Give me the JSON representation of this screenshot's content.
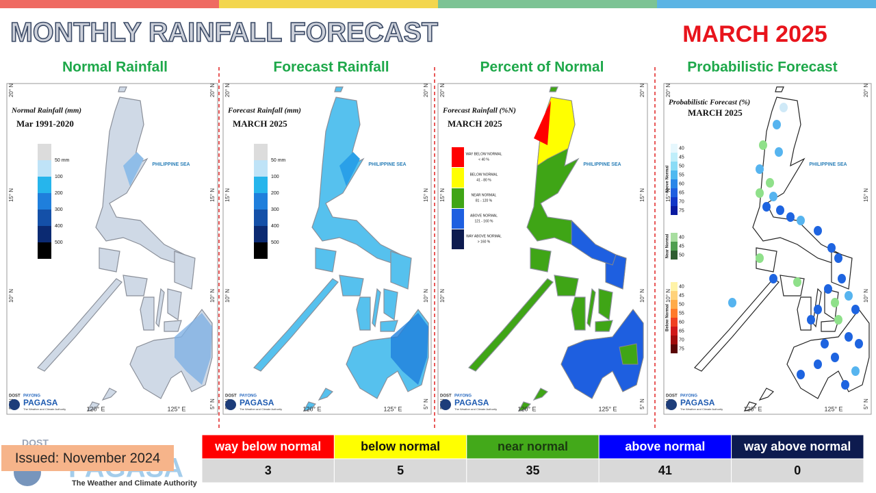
{
  "header": {
    "title": "MONTHLY RAINFALL FORECAST",
    "period": "MARCH 2025"
  },
  "map_labels": {
    "sea": "PHILIPPINE SEA",
    "lat": [
      "20° N",
      "15° N",
      "10° N",
      "5° N"
    ],
    "lon": [
      "120° E",
      "125° E"
    ]
  },
  "logo": {
    "agency": "DOST",
    "line1": "PAYONG",
    "line2": "PAGASA",
    "tagline": "The Weather and Climate Authority"
  },
  "panels": [
    {
      "title": "Normal Rainfall",
      "map_title": "Normal Rainfall (mm)",
      "map_subtitle": "Mar 1991-2020",
      "legend": [
        "50 mm",
        "100",
        "200",
        "300",
        "400",
        "500"
      ]
    },
    {
      "title": "Forecast Rainfall",
      "map_title": "Forecast Rainfall (mm)",
      "map_subtitle": "MARCH 2025",
      "legend": [
        "50 mm",
        "100",
        "200",
        "300",
        "400",
        "500"
      ]
    },
    {
      "title": "Percent of Normal",
      "map_title": "Forecast Rainfall (%N)",
      "map_subtitle": "MARCH 2025",
      "legend": [
        {
          "label": "WAY BELOW NORMAL",
          "range": "< 40 %"
        },
        {
          "label": "BELOW NORMAL",
          "range": "41 - 80 %"
        },
        {
          "label": "NEAR NORMAL",
          "range": "81 - 120 %"
        },
        {
          "label": "ABOVE NORMAL",
          "range": "121 - 160 %"
        },
        {
          "label": "WAY ABOVE NORMAL",
          "range": "> 160 %"
        }
      ]
    },
    {
      "title": "Probabilistic Forecast",
      "map_title": "Probabilistic Forecast (%)",
      "map_subtitle": "MARCH 2025",
      "legend": [
        {
          "name": "Above Normal",
          "ticks": [
            40,
            45,
            50,
            55,
            60,
            65,
            70,
            75
          ]
        },
        {
          "name": "Near Normal",
          "ticks": [
            40,
            45,
            50
          ]
        },
        {
          "name": "Below Normal",
          "ticks": [
            40,
            45,
            50,
            55,
            60,
            65,
            70,
            75
          ]
        }
      ]
    }
  ],
  "summary": {
    "categories": [
      "way below normal",
      "below normal",
      "near normal",
      "above normal",
      "way above normal"
    ],
    "counts": [
      3,
      5,
      35,
      41,
      0
    ]
  },
  "issued": "Issued: November 2024"
}
